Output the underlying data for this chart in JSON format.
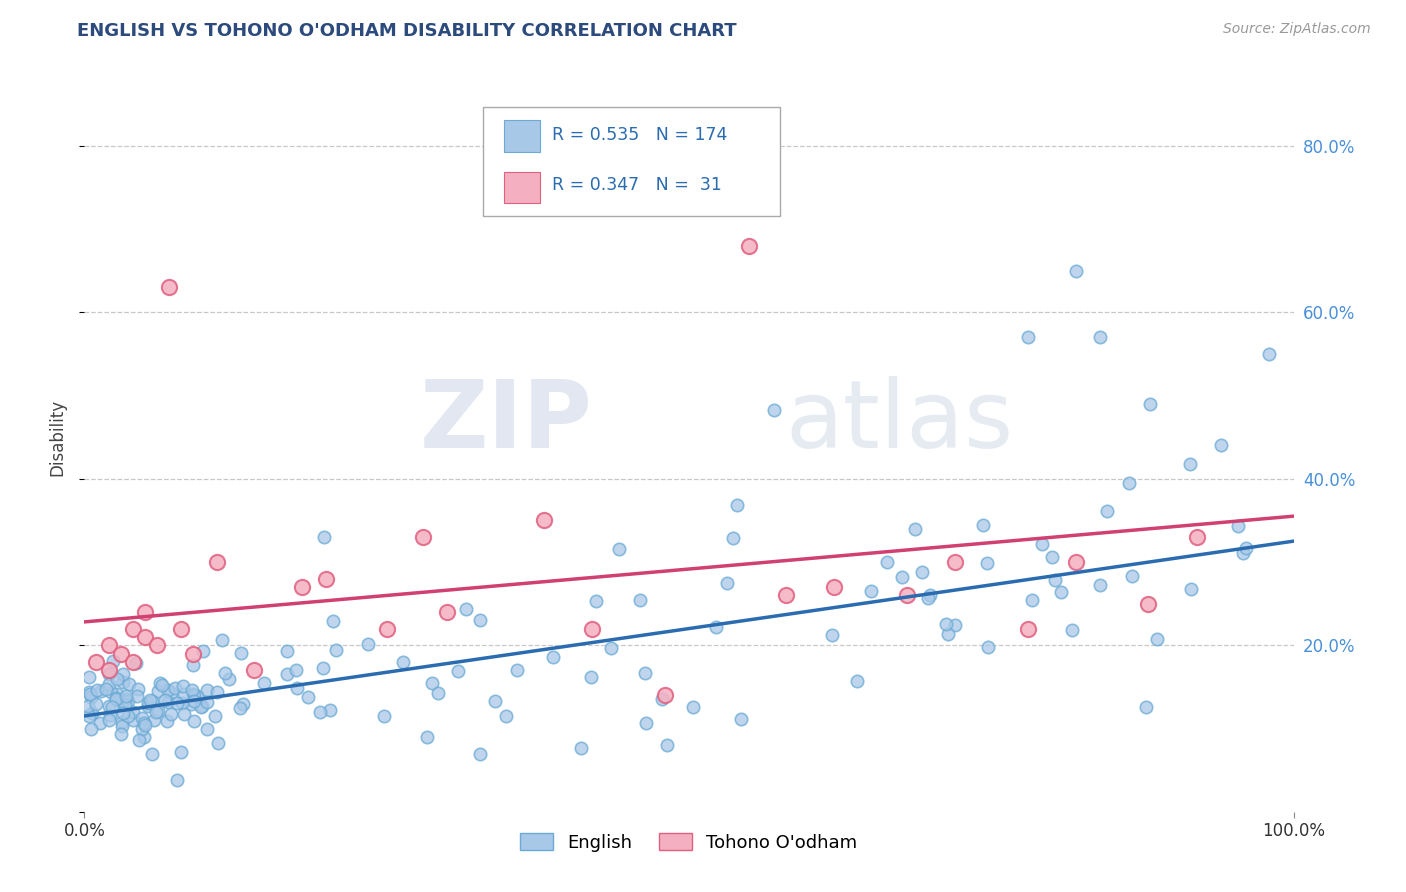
{
  "title": "ENGLISH VS TOHONO O'ODHAM DISABILITY CORRELATION CHART",
  "source_text": "Source: ZipAtlas.com",
  "ylabel": "Disability",
  "xlim": [
    0.0,
    1.0
  ],
  "ylim": [
    0.0,
    0.9
  ],
  "english_color": "#a8c8e8",
  "english_edge_color": "#6aaad4",
  "tohono_color": "#f4b0c0",
  "tohono_edge_color": "#e06080",
  "english_line_color": "#2b6cb0",
  "tohono_line_color": "#d04070",
  "background_color": "#ffffff",
  "grid_color": "#c8c8c8",
  "R_english": 0.535,
  "N_english": 174,
  "R_tohono": 0.347,
  "N_tohono": 31,
  "watermark_zip": "ZIP",
  "watermark_atlas": "atlas",
  "legend_label_english": "English",
  "legend_label_tohono": "Tohono O'odham",
  "title_color": "#2c4a7c",
  "stats_color": "#2b6cb0",
  "eng_line_start": 0.115,
  "eng_line_end": 0.325,
  "toh_line_start": 0.228,
  "toh_line_end": 0.355
}
